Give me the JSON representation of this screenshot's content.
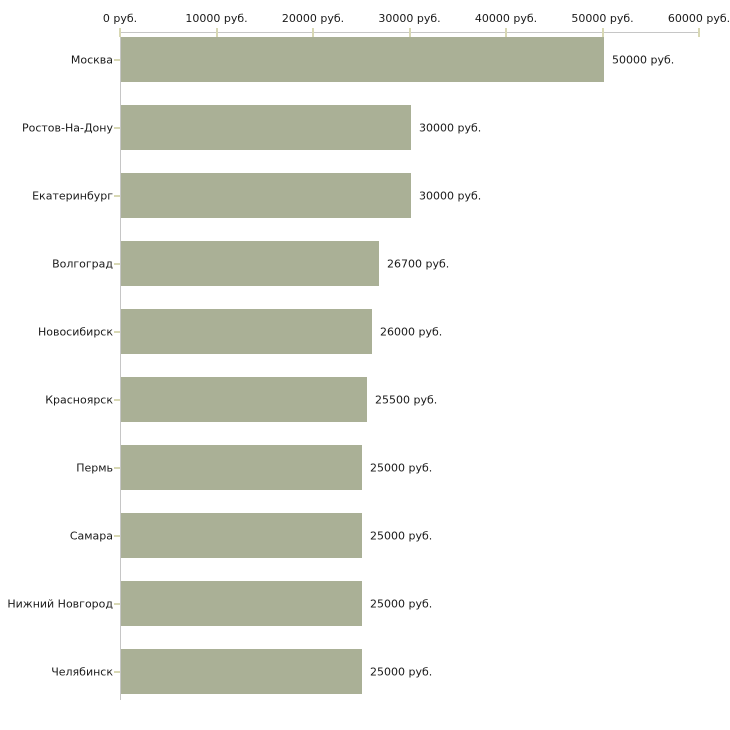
{
  "chart_data": {
    "type": "bar",
    "orientation": "horizontal",
    "title": "",
    "xlabel": "",
    "ylabel": "",
    "legend": "none",
    "grid": false,
    "categories": [
      "Москва",
      "Ростов-На-Дону",
      "Екатеринбург",
      "Волгоград",
      "Новосибирск",
      "Красноярск",
      "Пермь",
      "Самара",
      "Нижний Новгород",
      "Челябинск"
    ],
    "values": [
      50000,
      30000,
      30000,
      26700,
      26000,
      25500,
      25000,
      25000,
      25000,
      25000
    ],
    "value_labels": [
      "50000 руб.",
      "30000 руб.",
      "30000 руб.",
      "26700 руб.",
      "26000 руб.",
      "25500 руб.",
      "25000 руб.",
      "25000 руб.",
      "25000 руб.",
      "25000 руб."
    ],
    "x_tick_labels": [
      "0 руб.",
      "10000 руб.",
      "20000 руб.",
      "30000 руб.",
      "40000 руб.",
      "50000 руб.",
      "60000 руб."
    ],
    "x_tick_step": 10000,
    "xlim": [
      0,
      60000
    ],
    "colors": {
      "bar": "#aab096",
      "axis_line": "#c6c6c6",
      "tick": "#d8d8b4",
      "text": "#1a1a1a",
      "background": "#ffffff"
    }
  }
}
